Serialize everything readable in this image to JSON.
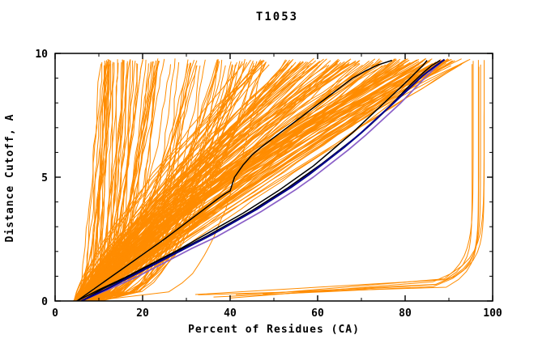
{
  "chart_data": {
    "type": "line",
    "title": "T1053",
    "xlabel": "Percent of Residues (CA)",
    "ylabel": "Distance Cutoff, A",
    "xlim": [
      0,
      100
    ],
    "ylim": [
      0,
      10
    ],
    "xticks": [
      0,
      20,
      40,
      60,
      80,
      100
    ],
    "yticks": [
      0,
      5,
      10
    ],
    "x_minor_step": 10,
    "y_minor_step": 1,
    "grid": false,
    "legend": "none",
    "description": "GDT-style plot for CASP target T1053: distance cutoff (A) versus percent of CA residues fitting under that cutoff. A large ensemble of orange model curves, three black highlighted model curves, and navy/purple highlighted curves.",
    "ensemble": {
      "seed": 1053,
      "color": "#ff8c00",
      "stroke_width": 1,
      "groups": [
        {
          "name": "steep-left-fan",
          "count": 85,
          "x0": [
            4,
            11
          ],
          "xend": [
            9,
            48
          ],
          "xend_bias": 1.7,
          "p": [
            0.22,
            0.6
          ],
          "wobble": 0.55
        },
        {
          "name": "main-band",
          "count": 150,
          "x0": [
            4,
            10
          ],
          "xend": [
            42,
            92
          ],
          "xend_bias": 0.75,
          "p": [
            0.9,
            1.45
          ],
          "wobble": 0.8
        },
        {
          "name": "right-flat-late",
          "count": 7,
          "type": "flat-right"
        }
      ]
    },
    "highlighted_series": [
      {
        "name": "black-1",
        "color": "#000000",
        "width": 1.5,
        "points": [
          [
            5,
            0
          ],
          [
            9,
            0.5
          ],
          [
            13,
            1.0
          ],
          [
            17,
            1.5
          ],
          [
            21,
            2.0
          ],
          [
            25,
            2.5
          ],
          [
            28,
            2.9
          ],
          [
            31,
            3.3
          ],
          [
            34,
            3.7
          ],
          [
            37,
            4.1
          ],
          [
            39,
            4.35
          ],
          [
            40,
            4.45
          ],
          [
            41,
            5.0
          ],
          [
            43,
            5.5
          ],
          [
            45,
            5.9
          ],
          [
            47,
            6.2
          ],
          [
            50,
            6.6
          ],
          [
            53,
            7.0
          ],
          [
            56,
            7.4
          ],
          [
            59,
            7.8
          ],
          [
            62,
            8.2
          ],
          [
            65,
            8.6
          ],
          [
            68,
            9.0
          ],
          [
            71,
            9.3
          ],
          [
            74,
            9.55
          ],
          [
            77,
            9.72
          ]
        ]
      },
      {
        "name": "black-2",
        "color": "#000000",
        "width": 1.5,
        "points": [
          [
            5,
            0
          ],
          [
            10,
            0.45
          ],
          [
            16,
            0.95
          ],
          [
            22,
            1.5
          ],
          [
            28,
            2.05
          ],
          [
            33,
            2.55
          ],
          [
            38,
            3.05
          ],
          [
            43,
            3.55
          ],
          [
            47,
            4.0
          ],
          [
            51,
            4.45
          ],
          [
            55,
            4.95
          ],
          [
            59,
            5.45
          ],
          [
            62,
            5.9
          ],
          [
            65,
            6.35
          ],
          [
            68,
            6.8
          ],
          [
            71,
            7.3
          ],
          [
            74,
            7.8
          ],
          [
            77,
            8.3
          ],
          [
            80,
            8.8
          ],
          [
            82,
            9.15
          ],
          [
            84,
            9.5
          ],
          [
            85,
            9.72
          ]
        ]
      },
      {
        "name": "black-3",
        "color": "#000000",
        "width": 1.5,
        "points": [
          [
            6,
            0
          ],
          [
            11,
            0.5
          ],
          [
            17,
            1.0
          ],
          [
            23,
            1.55
          ],
          [
            29,
            2.1
          ],
          [
            35,
            2.65
          ],
          [
            40,
            3.15
          ],
          [
            45,
            3.65
          ],
          [
            49,
            4.1
          ],
          [
            53,
            4.55
          ],
          [
            57,
            5.05
          ],
          [
            61,
            5.55
          ],
          [
            65,
            6.1
          ],
          [
            69,
            6.65
          ],
          [
            72,
            7.1
          ],
          [
            75,
            7.6
          ],
          [
            78,
            8.15
          ],
          [
            81,
            8.7
          ],
          [
            84,
            9.2
          ],
          [
            86,
            9.5
          ],
          [
            88,
            9.72
          ]
        ]
      },
      {
        "name": "purple",
        "color": "#8a5fc8",
        "width": 1.7,
        "points": [
          [
            6,
            0
          ],
          [
            12,
            0.45
          ],
          [
            19,
            1.0
          ],
          [
            25,
            1.55
          ],
          [
            31,
            2.1
          ],
          [
            37,
            2.6
          ],
          [
            42,
            3.1
          ],
          [
            47,
            3.6
          ],
          [
            51,
            4.05
          ],
          [
            55,
            4.5
          ],
          [
            59,
            5.0
          ],
          [
            63,
            5.55
          ],
          [
            67,
            6.1
          ],
          [
            71,
            6.7
          ],
          [
            75,
            7.35
          ],
          [
            79,
            8.0
          ],
          [
            82,
            8.55
          ],
          [
            85,
            9.1
          ],
          [
            87,
            9.45
          ],
          [
            88,
            9.6
          ]
        ]
      },
      {
        "name": "navy",
        "color": "#00008b",
        "width": 2.2,
        "points": [
          [
            6,
            0
          ],
          [
            12,
            0.5
          ],
          [
            18,
            1.05
          ],
          [
            24,
            1.6
          ],
          [
            30,
            2.15
          ],
          [
            36,
            2.7
          ],
          [
            41,
            3.2
          ],
          [
            46,
            3.7
          ],
          [
            50,
            4.15
          ],
          [
            54,
            4.6
          ],
          [
            58,
            5.1
          ],
          [
            62,
            5.65
          ],
          [
            66,
            6.2
          ],
          [
            70,
            6.8
          ],
          [
            74,
            7.45
          ],
          [
            78,
            8.1
          ],
          [
            81,
            8.6
          ],
          [
            84,
            9.1
          ],
          [
            87,
            9.5
          ],
          [
            89,
            9.75
          ]
        ]
      }
    ]
  }
}
